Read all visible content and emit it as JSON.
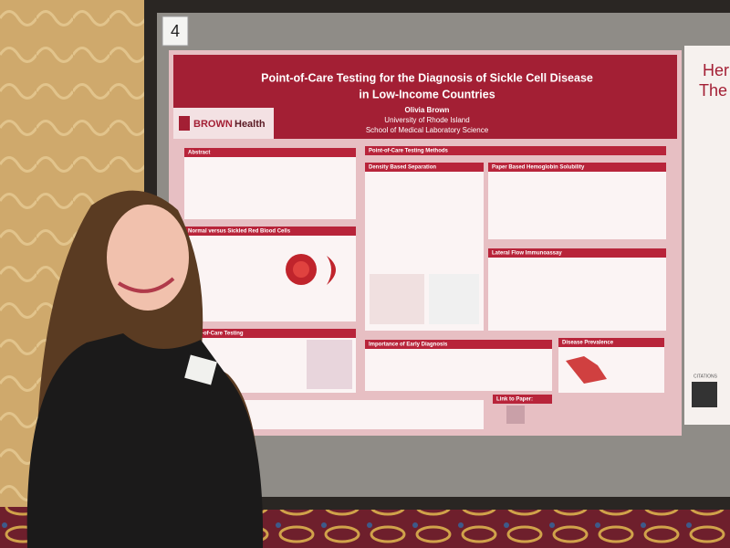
{
  "board_number": "4",
  "poster": {
    "title_line1": "Point-of-Care Testing for the Diagnosis of Sickle Cell Disease",
    "title_line2": "in Low-Income Countries",
    "author": "Olivia Brown",
    "affiliation": "University of Rhode Island",
    "department": "School of Medical Laboratory Science",
    "logo_brown": "BROWN",
    "logo_health": "Health",
    "sections": [
      "Abstract",
      "Normal versus Sickled Red Blood Cells",
      "Point-of-Care Testing",
      "Point-of-Care Testing Methods",
      "Density Based Separation",
      "Paper Based Hemoglobin Solubility",
      "Lateral Flow Immunoassay",
      "Importance of Early Diagnosis",
      "Link to Paper:",
      "Disease Prevalence"
    ]
  },
  "neighbor_poster": {
    "title_fragment_1": "Her",
    "title_fragment_2": "The",
    "citations": "CITATIONS"
  }
}
